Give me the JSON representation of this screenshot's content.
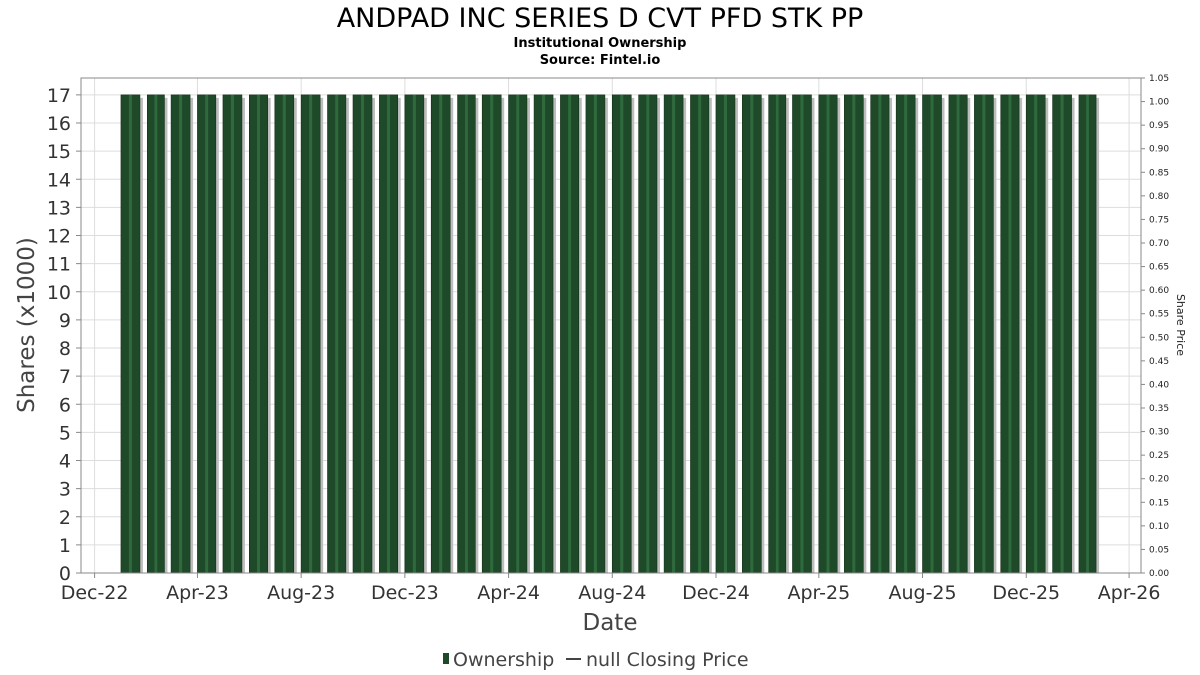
{
  "chart_data": {
    "type": "bar",
    "title": "ANDPAD INC SERIES D CVT PFD STK PP",
    "subtitle_lines": [
      "Institutional Ownership",
      "Source: Fintel.io"
    ],
    "xlabel": "Date",
    "ylabel": "Shares (x1000)",
    "y2label": "Share Price",
    "x_axis": {
      "type": "date",
      "range": [
        "2022-11-15",
        "2026-04-15"
      ],
      "ticks": [
        {
          "date": "2022-12-01",
          "label": "Dec-22"
        },
        {
          "date": "2023-04-01",
          "label": "Apr-23"
        },
        {
          "date": "2023-08-01",
          "label": "Aug-23"
        },
        {
          "date": "2023-12-01",
          "label": "Dec-23"
        },
        {
          "date": "2024-04-01",
          "label": "Apr-24"
        },
        {
          "date": "2024-08-01",
          "label": "Aug-24"
        },
        {
          "date": "2024-12-01",
          "label": "Dec-24"
        },
        {
          "date": "2025-04-01",
          "label": "Apr-25"
        },
        {
          "date": "2025-08-01",
          "label": "Aug-25"
        },
        {
          "date": "2025-12-01",
          "label": "Dec-25"
        },
        {
          "date": "2026-04-01",
          "label": "Apr-26"
        }
      ]
    },
    "y_axis": {
      "range": [
        0,
        17.6
      ],
      "ticks": [
        0,
        1,
        2,
        3,
        4,
        5,
        6,
        7,
        8,
        9,
        10,
        11,
        12,
        13,
        14,
        15,
        16,
        17
      ]
    },
    "y2_axis": {
      "range": [
        0,
        1.05
      ],
      "ticks": [
        "0.00",
        "0.05",
        "0.10",
        "0.15",
        "0.20",
        "0.25",
        "0.30",
        "0.35",
        "0.40",
        "0.45",
        "0.50",
        "0.55",
        "0.60",
        "0.65",
        "0.70",
        "0.75",
        "0.80",
        "0.85",
        "0.90",
        "0.95",
        "1.00",
        "1.05"
      ]
    },
    "series": [
      {
        "name": "Ownership",
        "color": "#1f4a2a",
        "x": [
          "2023-01",
          "2023-02",
          "2023-03",
          "2023-04",
          "2023-05",
          "2023-06",
          "2023-07",
          "2023-08",
          "2023-09",
          "2023-10",
          "2023-11",
          "2023-12",
          "2024-01",
          "2024-02",
          "2024-03",
          "2024-04",
          "2024-05",
          "2024-06",
          "2024-07",
          "2024-08",
          "2024-09",
          "2024-10",
          "2024-11",
          "2024-12",
          "2025-01",
          "2025-02",
          "2025-03",
          "2025-04",
          "2025-05",
          "2025-06",
          "2025-07",
          "2025-08",
          "2025-09",
          "2025-10",
          "2025-11",
          "2025-12",
          "2026-01",
          "2026-02"
        ],
        "values": [
          17,
          17,
          17,
          17,
          17,
          17,
          17,
          17,
          17,
          17,
          17,
          17,
          17,
          17,
          17,
          17,
          17,
          17,
          17,
          17,
          17,
          17,
          17,
          17,
          17,
          17,
          17,
          17,
          17,
          17,
          17,
          17,
          17,
          17,
          17,
          17,
          17,
          17
        ]
      }
    ],
    "legend": {
      "placement": "bottom-center",
      "items": [
        {
          "label": "Ownership",
          "marker": "bar",
          "color": "#1f4a2a"
        },
        {
          "label": "null Closing Price",
          "marker": "line",
          "color": "#444444"
        }
      ]
    },
    "grid": true
  }
}
